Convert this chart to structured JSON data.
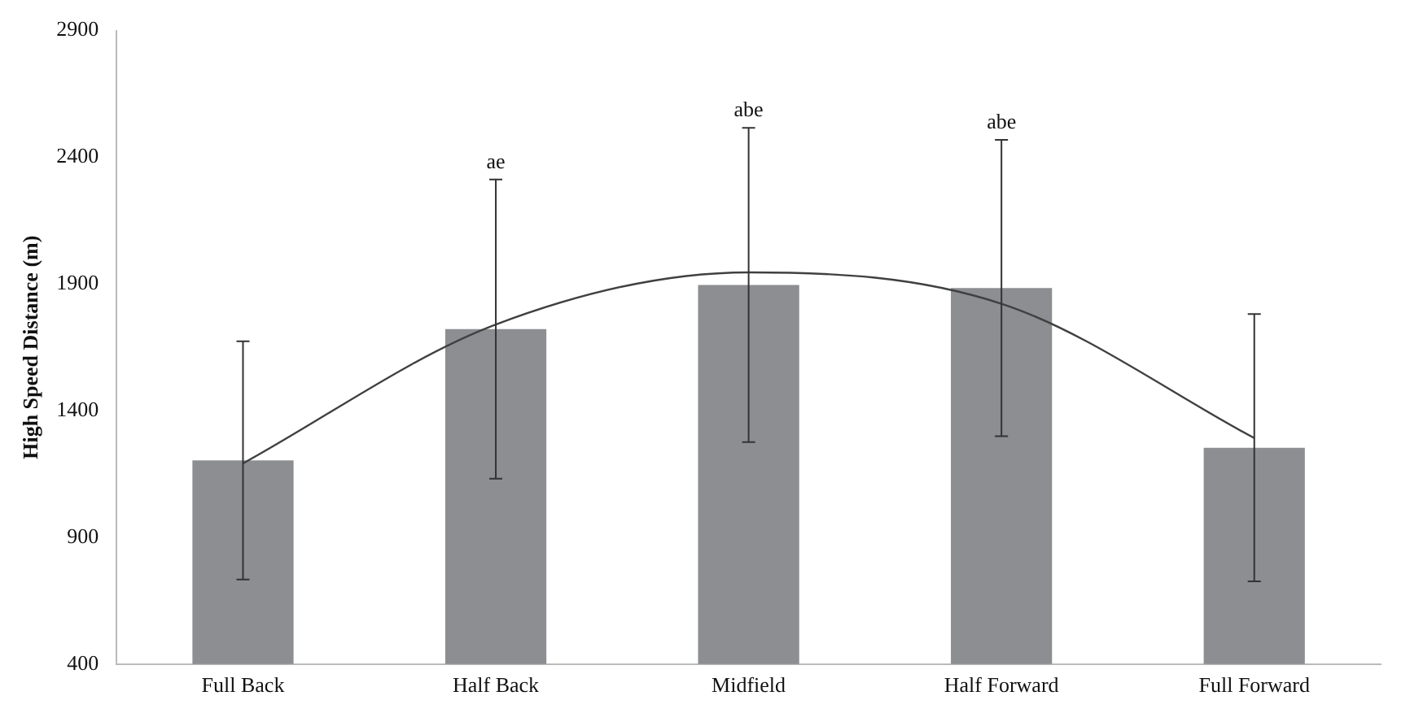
{
  "chart_data": {
    "type": "bar",
    "ylabel": "High Speed Distance (m)",
    "categories": [
      "Full Back",
      "Half Back",
      "Midfield",
      "Half Forward",
      "Full Forward"
    ],
    "series": [
      {
        "color": "#8c8e91",
        "values": [
          1204,
          1722,
          1896,
          1884,
          1254
        ],
        "errors": [
          470,
          590,
          620,
          585,
          527
        ]
      },
      {
        "type": "line",
        "color": "#404040",
        "values": [
          1192,
          1740,
          1946,
          1822,
          1292
        ],
        "marker": "none"
      }
    ],
    "ylim": [
      400,
      2900
    ],
    "yticks": [
      400,
      900,
      1400,
      1900,
      2400,
      2900
    ],
    "grid": false,
    "legend": false,
    "annotations": [
      {
        "text": "ae",
        "x": "Half Back",
        "y": 2312
      },
      {
        "text": "abe",
        "x": "Midfield",
        "y": 2516
      },
      {
        "text": "abe",
        "x": "Half Forward",
        "y": 2469
      }
    ]
  }
}
